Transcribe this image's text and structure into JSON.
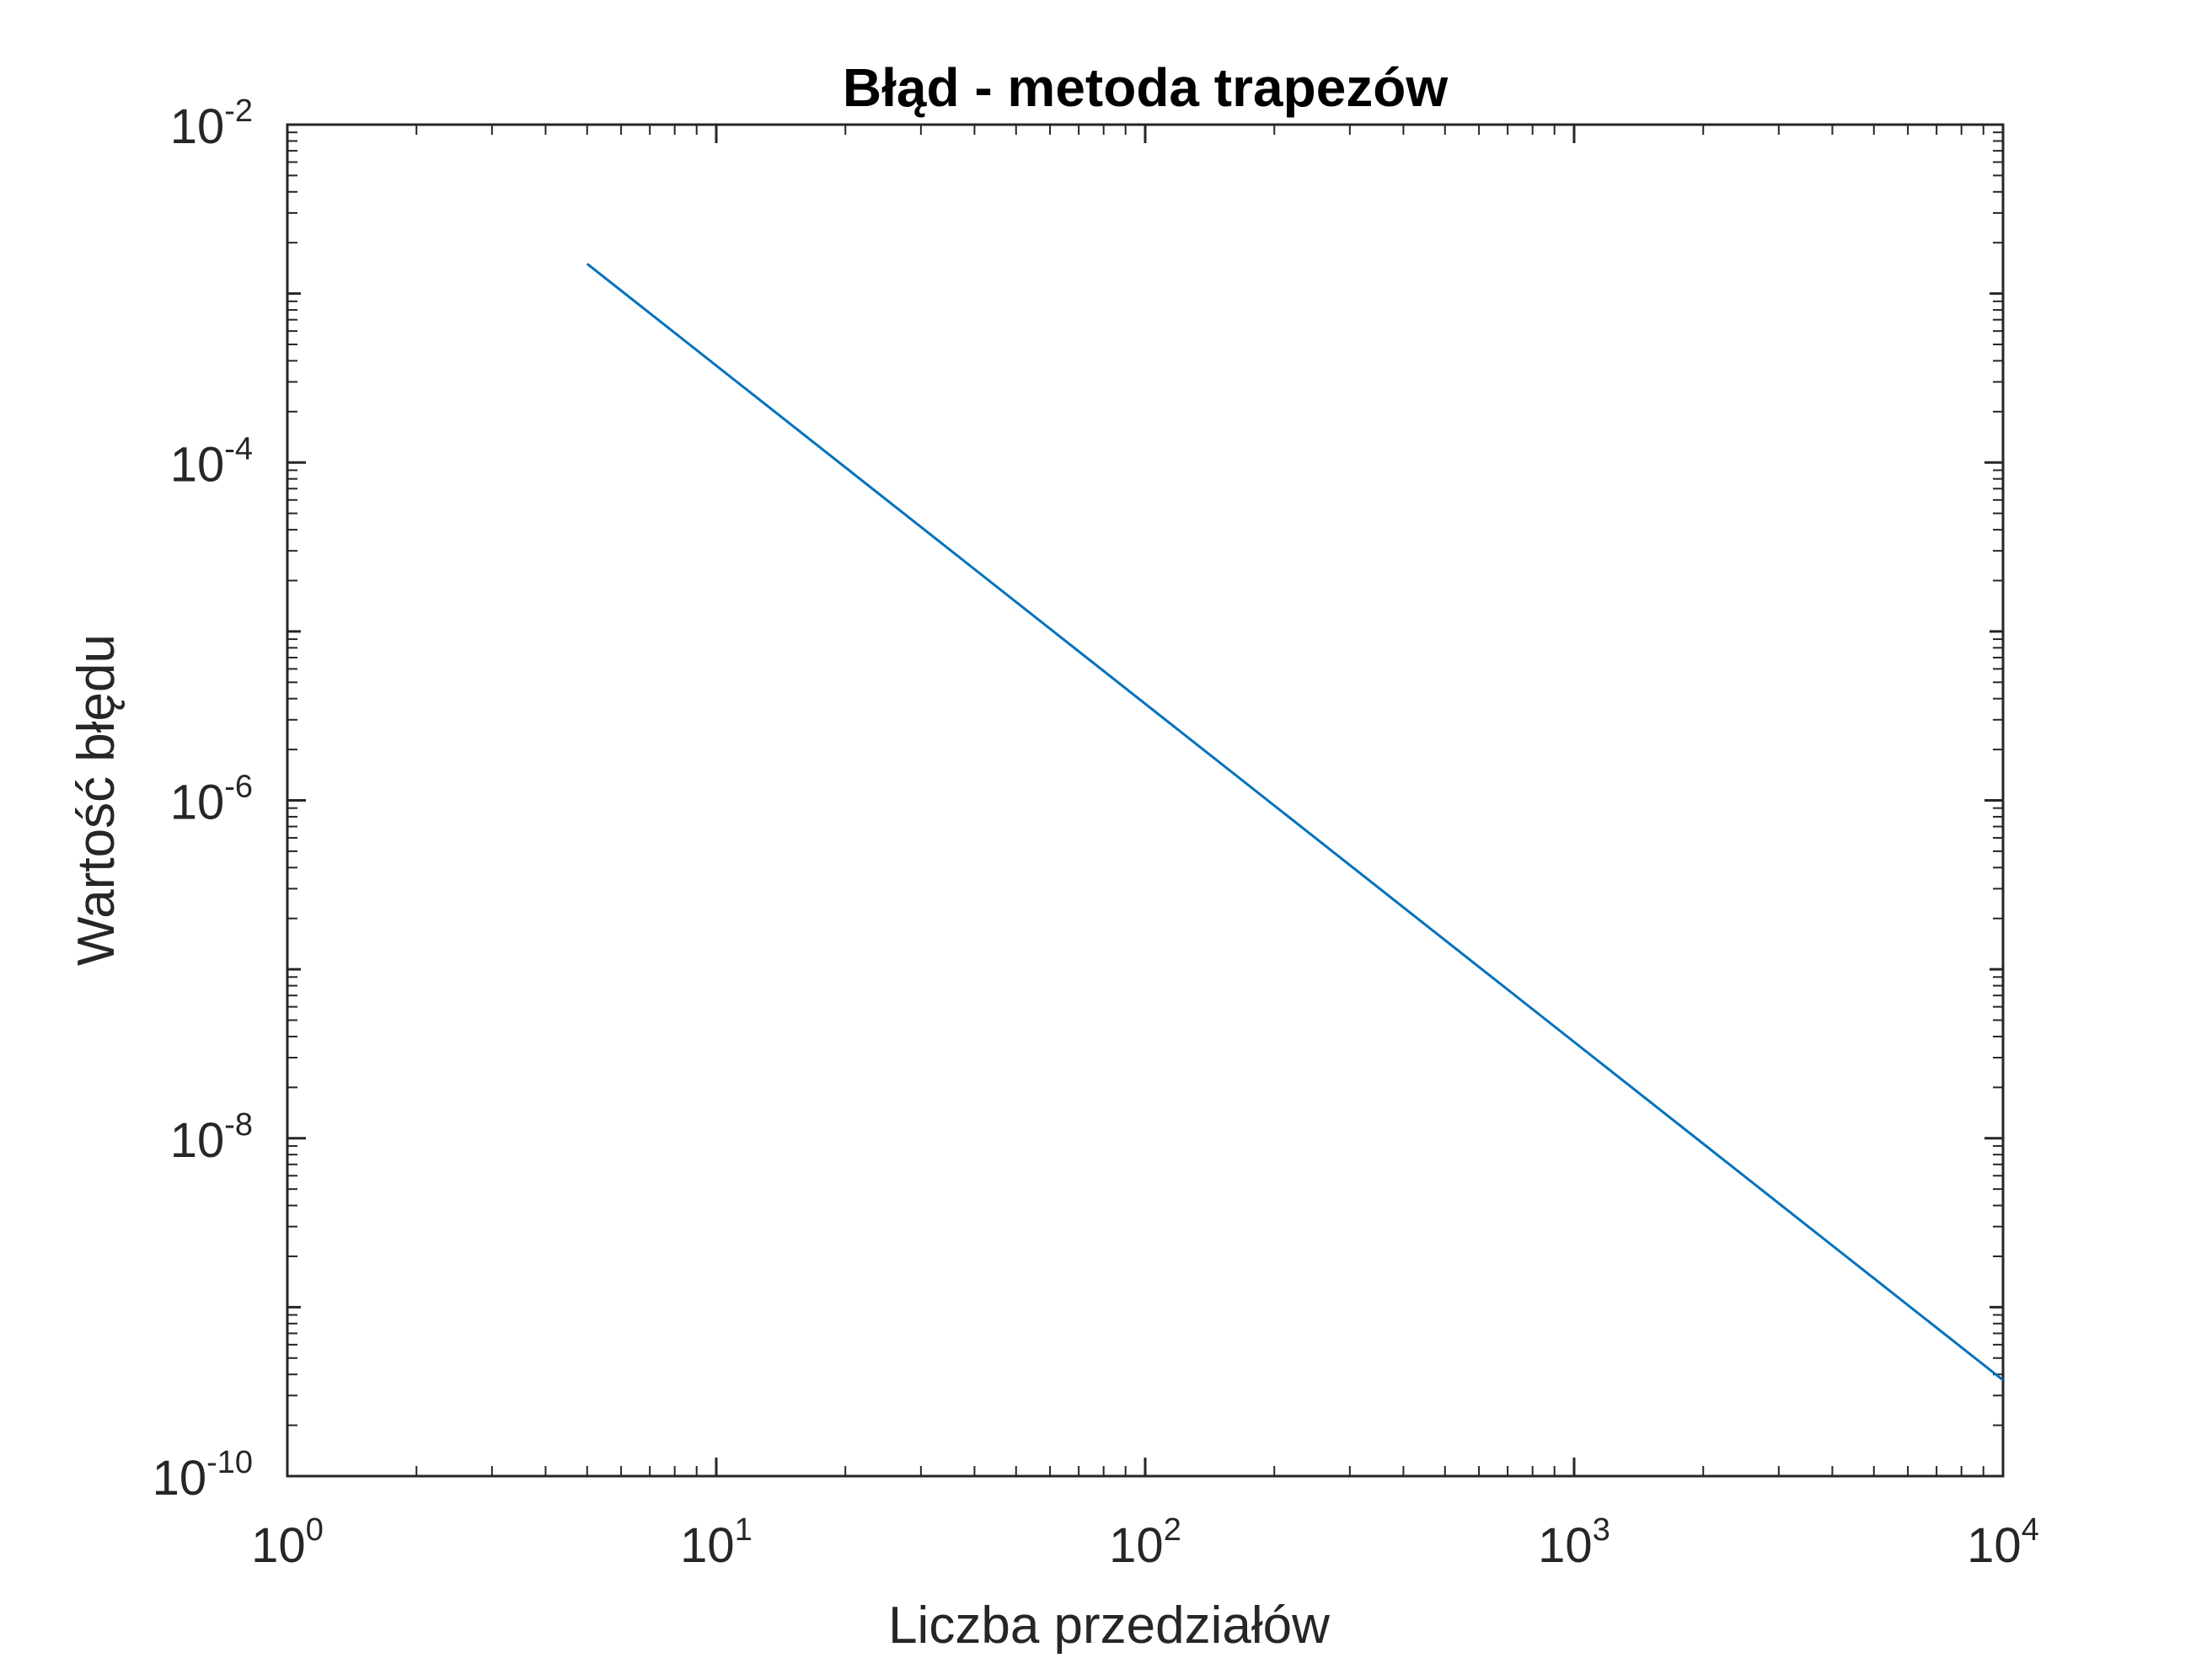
{
  "chart_data": {
    "type": "line",
    "title": "Błąd - metoda trapezów",
    "xlabel": "Liczba przedziałów",
    "ylabel": "Wartość błędu",
    "xscale": "log",
    "yscale": "log",
    "xlim": [
      1,
      10000
    ],
    "ylim": [
      1e-10,
      0.01
    ],
    "x_ticks": [
      {
        "base": "10",
        "exp": "0"
      },
      {
        "base": "10",
        "exp": "1"
      },
      {
        "base": "10",
        "exp": "2"
      },
      {
        "base": "10",
        "exp": "3"
      },
      {
        "base": "10",
        "exp": "4"
      }
    ],
    "y_ticks": [
      {
        "base": "10",
        "exp": "-2"
      },
      {
        "base": "10",
        "exp": "-4"
      },
      {
        "base": "10",
        "exp": "-6"
      },
      {
        "base": "10",
        "exp": "-8"
      },
      {
        "base": "10",
        "exp": "-10"
      }
    ],
    "grid": false,
    "series": [
      {
        "color": "#0072BD",
        "x": [
          5,
          10000
        ],
        "y": [
          0.0015,
          3.7e-10
        ]
      }
    ]
  }
}
